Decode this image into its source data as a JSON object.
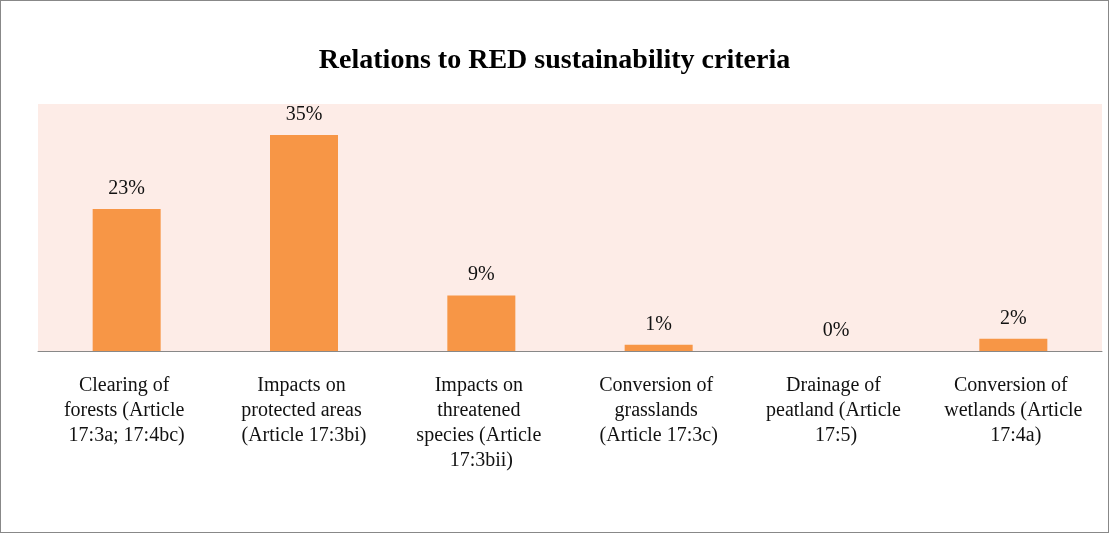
{
  "chart_data": {
    "type": "bar",
    "title": "Relations to RED sustainability criteria",
    "categories": [
      "Clearing of forests (Article 17:3a; 17:4bc)",
      "Impacts on protected areas (Article 17:3bi)",
      "Impacts on threatened species (Article 17:3bii)",
      "Conversion of grasslands (Article 17:3c)",
      "Drainage of peatland (Article 17:5)",
      "Conversion of wetlands (Article 17:4a)"
    ],
    "values": [
      23,
      35,
      9,
      1,
      0,
      2
    ],
    "value_labels": [
      "23%",
      "35%",
      "9%",
      "1%",
      "0%",
      "2%"
    ],
    "color": "#f79646"
  }
}
